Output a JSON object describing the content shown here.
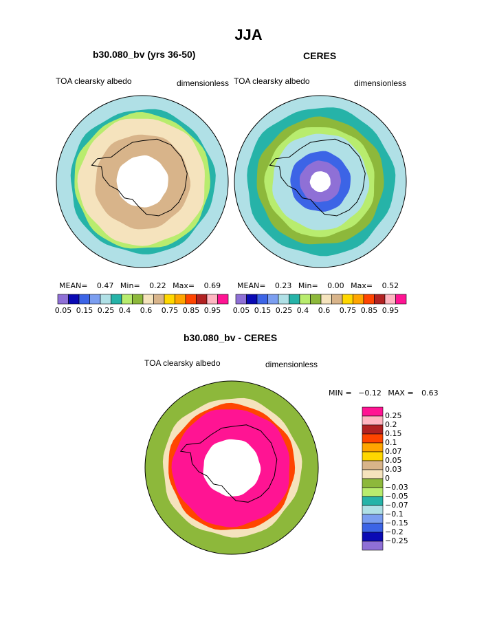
{
  "page": {
    "title": "JJA",
    "colors_main": [
      "#8f70d6",
      "#0a0ab4",
      "#3c64e6",
      "#7b9ef0",
      "#b0e0e6",
      "#26b3a8",
      "#b8ec6e",
      "#8db83b",
      "#f5e3bd",
      "#d8b48a",
      "#ffd700",
      "#ffa500",
      "#ff4500",
      "#b22222",
      "#ffb6c1",
      "#ff1493"
    ],
    "colors_diff": [
      "#ff1493",
      "#ffb6c1",
      "#b22222",
      "#ff4500",
      "#ffa500",
      "#ffd700",
      "#d8b48a",
      "#f5e3bd",
      "#8db83b",
      "#b8ec6e",
      "#26b3a8",
      "#b0e0e6",
      "#7b9ef0",
      "#3c64e6",
      "#0a0ab4",
      "#8f70d6"
    ]
  },
  "chart_data": [
    {
      "type": "heatmap",
      "id": "model",
      "title": "b30.080_bv (yrs 36-50)",
      "variable": "TOA clearsky albedo",
      "units": "dimensionless",
      "stats": {
        "mean_label": "MEAN=",
        "mean": "0.47",
        "min_label": "Min=",
        "min": "0.22",
        "max_label": "Max=",
        "max": "0.69"
      },
      "levels": [
        0.05,
        0.1,
        0.15,
        0.2,
        0.25,
        0.3,
        0.35,
        0.4,
        0.5,
        0.6,
        0.7,
        0.75,
        0.8,
        0.85,
        0.9,
        0.95
      ],
      "tick_labels": [
        "0.05",
        "0.15",
        "0.25",
        "0.4",
        "0.6",
        "0.75",
        "0.85",
        "0.95"
      ],
      "rings": [
        {
          "r_frac": 1.0,
          "level_index": 4
        },
        {
          "r_frac": 0.84,
          "level_index": 5
        },
        {
          "r_frac": 0.79,
          "level_index": 6
        },
        {
          "r_frac": 0.74,
          "level_index": 8
        },
        {
          "r_frac": 0.55,
          "level_index": 9
        },
        {
          "r_frac": 0.3,
          "level_index": -1
        }
      ]
    },
    {
      "type": "heatmap",
      "id": "obs",
      "title": "CERES",
      "variable": "TOA clearsky albedo",
      "units": "dimensionless",
      "stats": {
        "mean_label": "MEAN=",
        "mean": "0.23",
        "min_label": "Min=",
        "min": "0.00",
        "max_label": "Max=",
        "max": "0.52"
      },
      "levels": [
        0.05,
        0.1,
        0.15,
        0.2,
        0.25,
        0.3,
        0.35,
        0.4,
        0.5,
        0.6,
        0.7,
        0.75,
        0.8,
        0.85,
        0.9,
        0.95
      ],
      "tick_labels": [
        "0.05",
        "0.15",
        "0.25",
        "0.4",
        "0.6",
        "0.75",
        "0.85",
        "0.95"
      ],
      "rings": [
        {
          "r_frac": 1.0,
          "level_index": 4
        },
        {
          "r_frac": 0.86,
          "level_index": 5
        },
        {
          "r_frac": 0.74,
          "level_index": 7
        },
        {
          "r_frac": 0.64,
          "level_index": 6
        },
        {
          "r_frac": 0.56,
          "level_index": 4
        },
        {
          "r_frac": 0.35,
          "level_index": 2
        },
        {
          "r_frac": 0.24,
          "level_index": 0
        },
        {
          "r_frac": 0.12,
          "level_index": -1
        }
      ]
    },
    {
      "type": "heatmap",
      "id": "diff",
      "title": "b30.080_bv - CERES",
      "variable": "TOA clearsky albedo",
      "units": "dimensionless",
      "stats": {
        "min_label": "MIN =",
        "min": "−0.12",
        "max_label": "MAX =",
        "max": "0.63"
      },
      "levels": [
        0.25,
        0.2,
        0.15,
        0.1,
        0.07,
        0.05,
        0.03,
        0,
        -0.03,
        -0.05,
        -0.07,
        -0.1,
        -0.15,
        -0.2,
        -0.25
      ],
      "tick_labels": [
        "0.25",
        "0.2",
        "0.15",
        "0.1",
        "0.07",
        "0.05",
        "0.03",
        "0",
        "−0.03",
        "−0.05",
        "−0.07",
        "−0.1",
        "−0.15",
        "−0.2",
        "−0.25"
      ],
      "rings": [
        {
          "r_frac": 1.0,
          "level_index": 8
        },
        {
          "r_frac": 0.8,
          "level_index": 7
        },
        {
          "r_frac": 0.73,
          "level_index": 3
        },
        {
          "r_frac": 0.68,
          "level_index": 0
        },
        {
          "r_frac": 0.33,
          "level_index": -1
        }
      ]
    }
  ]
}
